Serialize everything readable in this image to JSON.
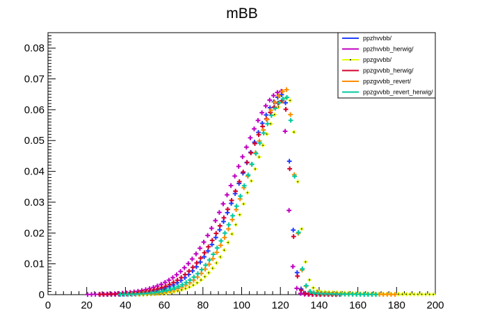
{
  "chart_data": {
    "type": "scatter",
    "title": "mBB",
    "xlabel": "",
    "ylabel": "",
    "xlim": [
      0,
      200
    ],
    "ylim": [
      0,
      0.085
    ],
    "x_ticks": [
      0,
      20,
      40,
      60,
      80,
      100,
      120,
      140,
      160,
      180,
      200
    ],
    "x_tick_labels": [
      "0",
      "20",
      "40",
      "60",
      "80",
      "100",
      "120",
      "140",
      "160",
      "180",
      "200"
    ],
    "y_ticks": [
      0,
      0.01,
      0.02,
      0.03,
      0.04,
      0.05,
      0.06,
      0.07,
      0.08
    ],
    "y_tick_labels": [
      "0",
      "0.01",
      "0.02",
      "0.03",
      "0.04",
      "0.05",
      "0.06",
      "0.07",
      "0.08"
    ],
    "grid": false,
    "legend_position": "top-right",
    "series": [
      {
        "name": "ppzhvvbb/",
        "color": "#1f3fff",
        "shift": -2,
        "peak_x": 122,
        "peak": 0.065,
        "sigma_left": 21,
        "sigma_right": 3.3,
        "tail": 0.0006,
        "tail_decay": 12
      },
      {
        "name": "ppzhvvbb_herwig/",
        "color": "#c000c0",
        "shift": -3,
        "peak_x": 121,
        "peak": 0.066,
        "sigma_left": 23,
        "sigma_right": 3.0,
        "tail": 0.0004,
        "tail_decay": 10
      },
      {
        "name": "ppzgvvbb/",
        "color": "#e6ff00",
        "shift": 0,
        "peak_x": 124,
        "peak": 0.064,
        "sigma_left": 18,
        "sigma_right": 4.6,
        "tail": 0.0018,
        "tail_decay": 24
      },
      {
        "name": "ppzgvvbb_herwig/",
        "color": "#d4002a",
        "shift": -1,
        "peak_x": 122,
        "peak": 0.063,
        "sigma_left": 22,
        "sigma_right": 3.2,
        "tail": 0.0005,
        "tail_decay": 12
      },
      {
        "name": "ppzgvvbb_revert/",
        "color": "#ff8c00",
        "shift": 1,
        "peak_x": 123,
        "peak": 0.0665,
        "sigma_left": 19,
        "sigma_right": 3.8,
        "tail": 0.0012,
        "tail_decay": 18
      },
      {
        "name": "ppzgvvbb_revert_herwig/",
        "color": "#00c9a0",
        "shift": 2,
        "peak_x": 123,
        "peak": 0.064,
        "sigma_left": 20,
        "sigma_right": 3.9,
        "tail": 0.001,
        "tail_decay": 16
      }
    ]
  }
}
